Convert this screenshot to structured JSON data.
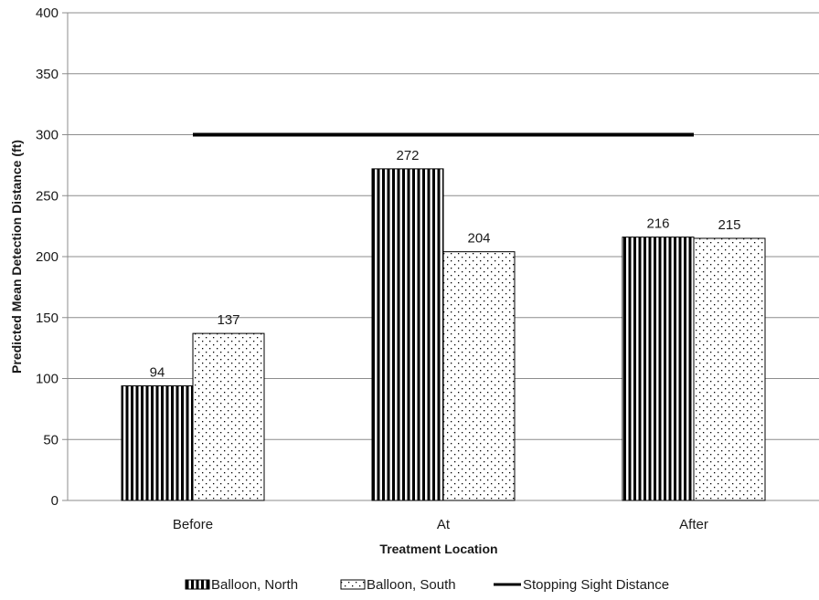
{
  "chart_data": {
    "type": "bar",
    "title": "",
    "xlabel": "Treatment Location",
    "ylabel": "Predicted Mean Detection Distance (ft)",
    "categories": [
      "Before",
      "At",
      "After"
    ],
    "ylim": [
      0,
      400
    ],
    "yticks": [
      0,
      50,
      100,
      150,
      200,
      250,
      300,
      350,
      400
    ],
    "grid": true,
    "legend_position": "bottom",
    "series": [
      {
        "name": "Balloon, North",
        "values": [
          94,
          272,
          216
        ],
        "pattern": "vertical-stripes",
        "labels": [
          "94",
          "272",
          "216"
        ]
      },
      {
        "name": "Balloon, South",
        "values": [
          137,
          204,
          215
        ],
        "pattern": "dots",
        "labels": [
          "137",
          "204",
          "215"
        ]
      }
    ],
    "reference_line": {
      "name": "Stopping Sight Distance",
      "value": 300,
      "color": "#000000"
    },
    "colors": {
      "bar_stroke": "#000000",
      "grid": "#8c8c8c",
      "text": "#1a1a1a"
    }
  }
}
